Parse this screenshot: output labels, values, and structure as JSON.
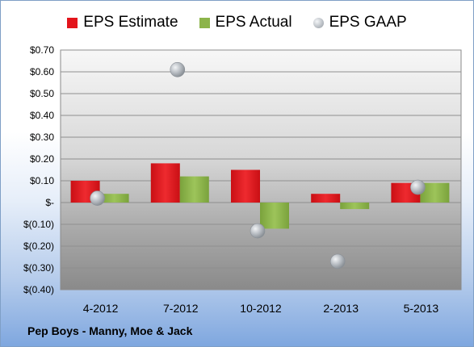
{
  "chart_data": {
    "type": "bar",
    "title": "",
    "xlabel": "",
    "ylabel": "",
    "ylim": [
      -0.4,
      0.7
    ],
    "ytick_values": [
      0.7,
      0.6,
      0.5,
      0.4,
      0.3,
      0.2,
      0.1,
      0,
      -0.1,
      -0.2,
      -0.3,
      -0.4
    ],
    "ytick_labels": [
      "$0.70",
      "$0.60",
      "$0.50",
      "$0.40",
      "$0.30",
      "$0.20",
      "$0.10",
      "$-",
      "$(0.10)",
      "$(0.20)",
      "$(0.30)",
      "$(0.40)"
    ],
    "categories": [
      "4-2012",
      "7-2012",
      "10-2012",
      "2-2013",
      "5-2013"
    ],
    "series": [
      {
        "name": "EPS Estimate",
        "kind": "bar",
        "color": "#e3141b",
        "values": [
          0.1,
          0.18,
          0.15,
          0.04,
          0.09
        ]
      },
      {
        "name": "EPS Actual",
        "kind": "bar",
        "color": "#8cb44a",
        "values": [
          0.04,
          0.12,
          -0.12,
          -0.03,
          0.09
        ]
      },
      {
        "name": "EPS GAAP",
        "kind": "scatter",
        "color": "#b4b9bf",
        "values": [
          0.02,
          0.61,
          -0.13,
          -0.27,
          0.07
        ]
      }
    ],
    "grid": true,
    "legend_position": "top"
  },
  "footer": {
    "company": "Pep Boys - Manny, Moe & Jack"
  }
}
